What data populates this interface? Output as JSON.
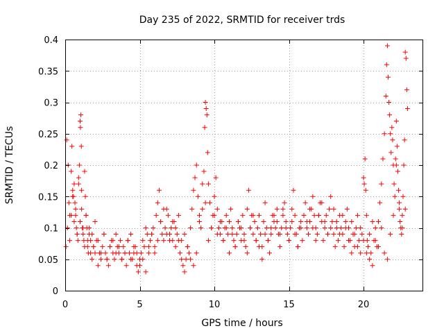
{
  "chart_data": {
    "type": "scatter",
    "title": "Day 235 of 2022, SRMTID for receiver trds",
    "xlabel": "GPS time / hours",
    "ylabel": "SRMTID / TECUs",
    "xlim": [
      0,
      24
    ],
    "ylim": [
      0,
      0.4
    ],
    "xticks": [
      0,
      5,
      10,
      15,
      20
    ],
    "yticks": [
      0,
      0.05,
      0.1,
      0.15,
      0.2,
      0.25,
      0.3,
      0.35,
      0.4
    ],
    "xtick_labels": [
      "0",
      "5",
      "10",
      "15",
      "20"
    ],
    "ytick_labels": [
      "0",
      "0.05",
      "0.1",
      "0.15",
      "0.2",
      "0.25",
      "0.3",
      "0.35",
      "0.4"
    ],
    "grid": true,
    "marker": "+",
    "color": "#ff0000",
    "series": [
      {
        "x": [
          0.05,
          0.15,
          0.25,
          0.3,
          0.4,
          0.45,
          0.5,
          0.55,
          0.6,
          0.65,
          0.7,
          0.75,
          0.8,
          0.85,
          0.9,
          0.95,
          1.0,
          1.02,
          1.05,
          1.08,
          1.1,
          1.15,
          1.2,
          1.25,
          1.3,
          1.35,
          1.4,
          1.45,
          1.5,
          1.55,
          1.6,
          1.7,
          1.8,
          1.9,
          2.0,
          2.1,
          2.2,
          2.3,
          2.4,
          2.5,
          2.6,
          2.7,
          2.8,
          2.9,
          3.0,
          3.1,
          3.2,
          3.3,
          3.4,
          3.5,
          3.6,
          3.7,
          3.8,
          3.9,
          4.0,
          4.1,
          4.2,
          4.3,
          4.4,
          4.5,
          4.6,
          4.7,
          4.8,
          4.9,
          5.0,
          5.1,
          5.2,
          5.3,
          5.4,
          5.5,
          5.6,
          5.7,
          5.8,
          5.9,
          6.0,
          6.1,
          6.2,
          6.3,
          6.4,
          6.5,
          6.6,
          6.7,
          6.8,
          6.9,
          7.0,
          7.1,
          7.2,
          7.3,
          7.4,
          7.5,
          7.6,
          7.7,
          7.8,
          7.9,
          8.0,
          8.1,
          8.2,
          8.3,
          8.4,
          8.5,
          8.6,
          8.7,
          8.8,
          8.9,
          9.0,
          9.1,
          9.2,
          9.3,
          9.35,
          9.4,
          9.45,
          9.5,
          9.55,
          9.6,
          9.7,
          9.8,
          9.9,
          10.0,
          10.1,
          10.2,
          10.3,
          10.4,
          10.5,
          10.6,
          10.7,
          10.8,
          10.9,
          11.0,
          11.1,
          11.2,
          11.3,
          11.4,
          11.5,
          11.6,
          11.7,
          11.8,
          11.9,
          12.0,
          12.1,
          12.2,
          12.3,
          12.4,
          12.5,
          12.6,
          12.7,
          12.8,
          12.9,
          13.0,
          13.1,
          13.2,
          13.3,
          13.4,
          13.5,
          13.6,
          13.7,
          13.8,
          13.9,
          14.0,
          14.1,
          14.2,
          14.3,
          14.4,
          14.5,
          14.6,
          14.7,
          14.8,
          14.9,
          15.0,
          15.1,
          15.2,
          15.3,
          15.4,
          15.5,
          15.6,
          15.7,
          15.8,
          15.9,
          16.0,
          16.1,
          16.2,
          16.3,
          16.4,
          16.5,
          16.6,
          16.7,
          16.8,
          16.9,
          17.0,
          17.1,
          17.2,
          17.3,
          17.4,
          17.5,
          17.6,
          17.7,
          17.8,
          17.9,
          18.0,
          18.1,
          18.2,
          18.3,
          18.4,
          18.5,
          18.6,
          18.7,
          18.8,
          18.9,
          19.0,
          19.1,
          19.2,
          19.3,
          19.4,
          19.5,
          19.6,
          19.7,
          19.8,
          19.9,
          20.0,
          20.05,
          20.1,
          20.15,
          20.2,
          20.25,
          20.3,
          20.4,
          20.5,
          20.6,
          20.7,
          20.8,
          20.9,
          21.0,
          21.1,
          21.2,
          21.3,
          21.4,
          21.5,
          21.55,
          21.6,
          21.65,
          21.7,
          21.75,
          21.8,
          21.85,
          21.9,
          21.95,
          22.0,
          22.05,
          22.1,
          22.15,
          22.2,
          22.25,
          22.3,
          22.35,
          22.4,
          22.45,
          22.5,
          22.55,
          22.6,
          22.65,
          22.7,
          22.75,
          22.8,
          22.85,
          22.9,
          22.95,
          0.1,
          0.2,
          0.3,
          0.4,
          0.5,
          0.6,
          0.7,
          0.8,
          0.9,
          1.0,
          1.1,
          1.2,
          1.3,
          1.4,
          1.5,
          1.6,
          1.7,
          1.8,
          1.9,
          2.0,
          2.2,
          2.4,
          2.6,
          2.8,
          3.0,
          3.2,
          3.4,
          3.6,
          3.8,
          4.0,
          4.2,
          4.4,
          4.6,
          4.8,
          5.0,
          5.2,
          5.4,
          5.6,
          5.8,
          6.0,
          6.2,
          6.4,
          6.6,
          6.8,
          7.0,
          7.2,
          7.4,
          7.6,
          7.8,
          8.0,
          8.2,
          8.4,
          8.6,
          8.8,
          9.0,
          9.2,
          9.4,
          9.6,
          9.8,
          10.0,
          10.2,
          10.4,
          10.6,
          10.8,
          11.0,
          11.2,
          11.4,
          11.6,
          11.8,
          12.0,
          12.2,
          12.4,
          12.6,
          12.8,
          13.0,
          13.2,
          13.4,
          13.6,
          13.8,
          14.0,
          14.2,
          14.4,
          14.6,
          14.8,
          15.0,
          15.2,
          15.4,
          15.6,
          15.8,
          16.0,
          16.2,
          16.4,
          16.6,
          16.8,
          17.0,
          17.2,
          17.4,
          17.6,
          17.8,
          18.0,
          18.2,
          18.4,
          18.6,
          18.8,
          19.0,
          19.2,
          19.4,
          19.6,
          19.8,
          20.0,
          20.2,
          20.4,
          20.6,
          20.8,
          21.0,
          21.2,
          21.4,
          21.6,
          21.8,
          22.0,
          22.2,
          22.4,
          22.6,
          22.8
        ],
        "y": [
          0.07,
          0.1,
          0.14,
          0.12,
          0.19,
          0.23,
          0.16,
          0.15,
          0.17,
          0.14,
          0.12,
          0.1,
          0.09,
          0.08,
          0.18,
          0.2,
          0.27,
          0.26,
          0.28,
          0.23,
          0.13,
          0.1,
          0.09,
          0.08,
          0.19,
          0.15,
          0.12,
          0.1,
          0.07,
          0.06,
          0.09,
          0.08,
          0.05,
          0.07,
          0.06,
          0.08,
          0.04,
          0.06,
          0.05,
          0.07,
          0.09,
          0.06,
          0.05,
          0.04,
          0.07,
          0.08,
          0.06,
          0.05,
          0.09,
          0.07,
          0.06,
          0.08,
          0.05,
          0.07,
          0.06,
          0.04,
          0.08,
          0.06,
          0.09,
          0.05,
          0.06,
          0.07,
          0.04,
          0.03,
          0.05,
          0.06,
          0.08,
          0.07,
          0.1,
          0.09,
          0.06,
          0.08,
          0.09,
          0.1,
          0.07,
          0.12,
          0.14,
          0.16,
          0.11,
          0.09,
          0.08,
          0.1,
          0.13,
          0.12,
          0.09,
          0.1,
          0.08,
          0.11,
          0.07,
          0.09,
          0.08,
          0.06,
          0.05,
          0.04,
          0.03,
          0.05,
          0.07,
          0.06,
          0.1,
          0.13,
          0.16,
          0.18,
          0.2,
          0.15,
          0.11,
          0.1,
          0.13,
          0.19,
          0.26,
          0.3,
          0.29,
          0.28,
          0.22,
          0.17,
          0.14,
          0.1,
          0.12,
          0.15,
          0.18,
          0.13,
          0.1,
          0.09,
          0.11,
          0.08,
          0.1,
          0.12,
          0.09,
          0.11,
          0.13,
          0.1,
          0.08,
          0.07,
          0.09,
          0.11,
          0.1,
          0.08,
          0.12,
          0.09,
          0.07,
          0.13,
          0.16,
          0.1,
          0.12,
          0.09,
          0.11,
          0.08,
          0.1,
          0.12,
          0.09,
          0.07,
          0.11,
          0.14,
          0.1,
          0.08,
          0.06,
          0.09,
          0.12,
          0.11,
          0.1,
          0.13,
          0.09,
          0.07,
          0.1,
          0.12,
          0.14,
          0.11,
          0.09,
          0.08,
          0.1,
          0.13,
          0.16,
          0.12,
          0.09,
          0.07,
          0.1,
          0.11,
          0.08,
          0.12,
          0.14,
          0.1,
          0.09,
          0.11,
          0.13,
          0.15,
          0.12,
          0.1,
          0.09,
          0.12,
          0.14,
          0.11,
          0.08,
          0.1,
          0.12,
          0.09,
          0.13,
          0.15,
          0.11,
          0.09,
          0.07,
          0.1,
          0.08,
          0.12,
          0.1,
          0.09,
          0.07,
          0.11,
          0.13,
          0.1,
          0.08,
          0.06,
          0.09,
          0.07,
          0.1,
          0.12,
          0.08,
          0.06,
          0.09,
          0.18,
          0.17,
          0.21,
          0.16,
          0.12,
          0.08,
          0.07,
          0.05,
          0.06,
          0.04,
          0.08,
          0.1,
          0.07,
          0.11,
          0.14,
          0.17,
          0.21,
          0.25,
          0.31,
          0.36,
          0.39,
          0.34,
          0.3,
          0.28,
          0.25,
          0.22,
          0.26,
          0.24,
          0.2,
          0.17,
          0.15,
          0.21,
          0.27,
          0.23,
          0.19,
          0.16,
          0.13,
          0.11,
          0.1,
          0.09,
          0.12,
          0.15,
          0.2,
          0.24,
          0.38,
          0.37,
          0.32,
          0.29,
          0.24,
          0.2,
          0.08,
          0.12,
          0.15,
          0.11,
          0.13,
          0.09,
          0.17,
          0.11,
          0.16,
          0.1,
          0.07,
          0.12,
          0.08,
          0.1,
          0.06,
          0.09,
          0.07,
          0.11,
          0.08,
          0.06,
          0.09,
          0.05,
          0.07,
          0.08,
          0.06,
          0.07,
          0.05,
          0.06,
          0.08,
          0.05,
          0.07,
          0.06,
          0.04,
          0.05,
          0.03,
          0.07,
          0.09,
          0.06,
          0.08,
          0.11,
          0.13,
          0.09,
          0.08,
          0.11,
          0.1,
          0.12,
          0.08,
          0.09,
          0.07,
          0.05,
          0.04,
          0.06,
          0.12,
          0.17,
          0.14,
          0.08,
          0.1,
          0.12,
          0.09,
          0.11,
          0.08,
          0.1,
          0.06,
          0.09,
          0.07,
          0.11,
          0.1,
          0.08,
          0.06,
          0.1,
          0.12,
          0.08,
          0.07,
          0.05,
          0.09,
          0.08,
          0.1,
          0.12,
          0.11,
          0.09,
          0.13,
          0.1,
          0.08,
          0.11,
          0.09,
          0.07,
          0.1,
          0.12,
          0.11,
          0.13,
          0.1,
          0.08,
          0.12,
          0.14,
          0.11,
          0.09,
          0.1,
          0.13,
          0.11,
          0.09,
          0.12,
          0.1,
          0.08,
          0.11,
          0.09,
          0.07,
          0.1,
          0.08,
          0.06,
          0.09,
          0.11,
          0.08,
          0.07,
          0.1,
          0.06,
          0.05,
          0.09,
          0.12,
          0.2,
          0.14,
          0.1,
          0.13
        ]
      }
    ]
  }
}
